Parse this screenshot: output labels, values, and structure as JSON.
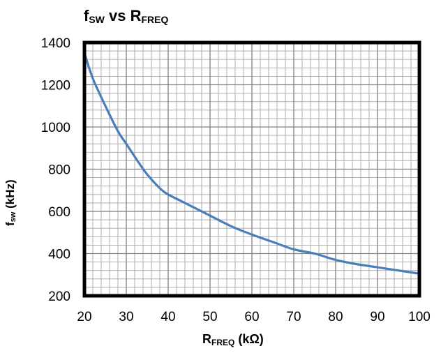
{
  "chart_data": {
    "type": "line",
    "title": {
      "main": "f",
      "sub1": "SW",
      "mid": " vs R",
      "sub2": "FREQ"
    },
    "xlabel": {
      "main": "R",
      "sub": "FREQ",
      "unit": " (kΩ)"
    },
    "ylabel": {
      "main": "f",
      "sub": "sw",
      "unit": " (kHz)"
    },
    "xlim": [
      20,
      100
    ],
    "ylim": [
      200,
      1400
    ],
    "xticks": [
      "20",
      "30",
      "40",
      "50",
      "60",
      "70",
      "80",
      "90",
      "100"
    ],
    "yticks": [
      "200",
      "400",
      "600",
      "800",
      "1000",
      "1200",
      "1400"
    ],
    "grid": true,
    "line_color": "#4a7ebb",
    "series": [
      {
        "x": [
          20,
          22,
          25,
          28,
          30,
          33,
          35,
          38,
          40,
          43,
          45,
          50,
          55,
          60,
          65,
          70,
          75,
          80,
          85,
          90,
          95,
          100
        ],
        "values": [
          1350,
          1230,
          1100,
          980,
          920,
          830,
          775,
          710,
          680,
          650,
          630,
          580,
          530,
          490,
          455,
          420,
          400,
          370,
          350,
          335,
          320,
          305
        ]
      }
    ]
  }
}
